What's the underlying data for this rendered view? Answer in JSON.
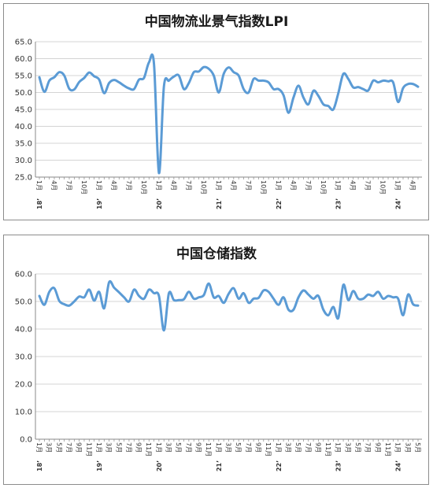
{
  "chart_data": [
    {
      "type": "line",
      "title": "中国物流业景气指数LPI",
      "ylim": [
        25.0,
        65.0
      ],
      "yticks": [
        "25.0",
        "30.0",
        "35.0",
        "40.0",
        "45.0",
        "50.0",
        "55.0",
        "60.0",
        "65.0"
      ],
      "grid": true,
      "color": "#5b9bd5",
      "x": [
        "18’1月",
        "2",
        "3",
        "4月",
        "5",
        "6",
        "7月",
        "8",
        "9",
        "10月",
        "11",
        "12",
        "19’1月",
        "2",
        "3",
        "4月",
        "5",
        "6",
        "7月",
        "8",
        "9",
        "10月",
        "11",
        "12",
        "20’1月",
        "2",
        "3",
        "4月",
        "5",
        "6",
        "7月",
        "8",
        "9",
        "10月",
        "11",
        "12",
        "21’1月",
        "2",
        "3",
        "4月",
        "5",
        "6",
        "7月",
        "8",
        "9",
        "10月",
        "11",
        "12",
        "22’1月",
        "2",
        "3",
        "4月",
        "5",
        "6",
        "7月",
        "8",
        "9",
        "10月",
        "11",
        "12",
        "23’1月",
        "2",
        "3",
        "4月",
        "5",
        "6",
        "7月",
        "8",
        "9",
        "10月",
        "11",
        "12",
        "24’1月",
        "2",
        "3",
        "4月",
        "5"
      ],
      "xtick_labels": [
        {
          "i": 0,
          "label": "1月",
          "year": "18’"
        },
        {
          "i": 3,
          "label": "4月"
        },
        {
          "i": 6,
          "label": "7月"
        },
        {
          "i": 9,
          "label": "10月"
        },
        {
          "i": 12,
          "label": "1月",
          "year": "19’"
        },
        {
          "i": 15,
          "label": "4月"
        },
        {
          "i": 18,
          "label": "7月"
        },
        {
          "i": 21,
          "label": "10月"
        },
        {
          "i": 24,
          "label": "1月",
          "year": "20’"
        },
        {
          "i": 27,
          "label": "4月"
        },
        {
          "i": 30,
          "label": "7月"
        },
        {
          "i": 33,
          "label": "10月"
        },
        {
          "i": 36,
          "label": "1月",
          "year": "21’"
        },
        {
          "i": 39,
          "label": "4月"
        },
        {
          "i": 42,
          "label": "7月"
        },
        {
          "i": 45,
          "label": "10月"
        },
        {
          "i": 48,
          "label": "1月",
          "year": "22’"
        },
        {
          "i": 51,
          "label": "4月"
        },
        {
          "i": 54,
          "label": "7月"
        },
        {
          "i": 57,
          "label": "10月"
        },
        {
          "i": 60,
          "label": "1月",
          "year": "23’"
        },
        {
          "i": 63,
          "label": "4月"
        },
        {
          "i": 66,
          "label": "7月"
        },
        {
          "i": 69,
          "label": "10月"
        },
        {
          "i": 72,
          "label": "1月",
          "year": "24’"
        },
        {
          "i": 75,
          "label": "4月"
        }
      ],
      "values": [
        54.5,
        50.2,
        53.5,
        54.5,
        56.0,
        55.0,
        51.1,
        50.9,
        53.1,
        54.3,
        55.9,
        54.8,
        53.8,
        49.8,
        52.8,
        53.7,
        53.0,
        52.0,
        51.2,
        51.0,
        53.8,
        54.3,
        58.9,
        58.5,
        26.2,
        51.8,
        53.5,
        54.7,
        55.0,
        51.0,
        52.8,
        56.0,
        56.2,
        57.5,
        57.0,
        55.0,
        50.0,
        55.5,
        57.4,
        56.0,
        55.0,
        51.0,
        50.0,
        54.0,
        53.5,
        53.5,
        53.0,
        51.0,
        51.0,
        49.2,
        44.0,
        48.5,
        52.0,
        48.5,
        46.5,
        50.5,
        49.0,
        46.5,
        46.0,
        45.0,
        49.8,
        55.5,
        54.0,
        51.5,
        51.6,
        51.0,
        50.6,
        53.5,
        53.0,
        53.5,
        53.3,
        53.0,
        47.2,
        51.3,
        52.5,
        52.5,
        51.7
      ]
    },
    {
      "type": "line",
      "title": "中国仓储指数",
      "ylim": [
        0.0,
        60.0
      ],
      "yticks": [
        "0.0",
        "10.0",
        "20.0",
        "30.0",
        "40.0",
        "50.0",
        "60.0"
      ],
      "grid": true,
      "color": "#5b9bd5",
      "x": [
        "18’1月",
        "2月",
        "3月",
        "4月",
        "5月",
        "6月",
        "7月",
        "8月",
        "9月",
        "10月",
        "11月",
        "12月",
        "19’1月",
        "2月",
        "3月",
        "4月",
        "5月",
        "6月",
        "7月",
        "8月",
        "9月",
        "10月",
        "11月",
        "12月",
        "20’1月",
        "2月",
        "3月",
        "4月",
        "5月",
        "6月",
        "7月",
        "8月",
        "9月",
        "10月",
        "11月",
        "12月",
        "21’1月",
        "2月",
        "3月",
        "4月",
        "5月",
        "6月",
        "7月",
        "8月",
        "9月",
        "10月",
        "11月",
        "12月",
        "22’1月",
        "2月",
        "3月",
        "4月",
        "5月",
        "6月",
        "7月",
        "8月",
        "9月",
        "10月",
        "11月",
        "12月",
        "23’1月",
        "2月",
        "3月",
        "4月",
        "5月",
        "6月",
        "7月",
        "8月",
        "9月",
        "10月",
        "11月",
        "12月",
        "24’1月",
        "2月",
        "3月",
        "4月",
        "5月"
      ],
      "xtick_labels": [
        {
          "i": 0,
          "label": "1月",
          "year": "18’"
        },
        {
          "i": 2,
          "label": "3月"
        },
        {
          "i": 4,
          "label": "5月"
        },
        {
          "i": 6,
          "label": "7月"
        },
        {
          "i": 8,
          "label": "9月"
        },
        {
          "i": 10,
          "label": "11月"
        },
        {
          "i": 12,
          "label": "1月",
          "year": "19’"
        },
        {
          "i": 14,
          "label": "3月"
        },
        {
          "i": 16,
          "label": "5月"
        },
        {
          "i": 18,
          "label": "7月"
        },
        {
          "i": 20,
          "label": "9月"
        },
        {
          "i": 22,
          "label": "11月"
        },
        {
          "i": 24,
          "label": "1月",
          "year": "20’"
        },
        {
          "i": 26,
          "label": "3月"
        },
        {
          "i": 28,
          "label": "5月"
        },
        {
          "i": 30,
          "label": "7月"
        },
        {
          "i": 32,
          "label": "9月"
        },
        {
          "i": 34,
          "label": "11月"
        },
        {
          "i": 36,
          "label": "1月",
          "year": "21’"
        },
        {
          "i": 38,
          "label": "3月"
        },
        {
          "i": 40,
          "label": "5月"
        },
        {
          "i": 42,
          "label": "7月"
        },
        {
          "i": 44,
          "label": "9月"
        },
        {
          "i": 46,
          "label": "11月"
        },
        {
          "i": 48,
          "label": "1月",
          "year": "22’"
        },
        {
          "i": 50,
          "label": "3月"
        },
        {
          "i": 52,
          "label": "5月"
        },
        {
          "i": 54,
          "label": "7月"
        },
        {
          "i": 56,
          "label": "9月"
        },
        {
          "i": 58,
          "label": "11月"
        },
        {
          "i": 60,
          "label": "1月",
          "year": "23’"
        },
        {
          "i": 62,
          "label": "3月"
        },
        {
          "i": 64,
          "label": "5月"
        },
        {
          "i": 66,
          "label": "7月"
        },
        {
          "i": 68,
          "label": "9月"
        },
        {
          "i": 70,
          "label": "11月"
        },
        {
          "i": 72,
          "label": "1月",
          "year": "24’"
        },
        {
          "i": 74,
          "label": "3月"
        },
        {
          "i": 76,
          "label": "5月"
        }
      ],
      "values": [
        52.0,
        48.8,
        53.5,
        54.8,
        50.2,
        49.0,
        48.5,
        50.0,
        51.8,
        51.5,
        54.3,
        50.3,
        53.5,
        47.5,
        57.0,
        55.0,
        53.3,
        51.5,
        50.0,
        54.3,
        52.0,
        51.0,
        54.3,
        53.0,
        52.0,
        39.5,
        53.0,
        50.5,
        50.5,
        50.8,
        53.5,
        51.0,
        51.5,
        52.3,
        56.5,
        51.5,
        52.0,
        49.5,
        52.8,
        54.8,
        51.0,
        53.0,
        49.5,
        51.0,
        51.3,
        54.0,
        53.5,
        51.0,
        48.8,
        51.5,
        47.0,
        47.0,
        51.5,
        54.0,
        52.5,
        51.0,
        52.0,
        47.0,
        45.0,
        48.0,
        44.0,
        56.0,
        50.5,
        53.8,
        51.0,
        51.0,
        52.5,
        52.0,
        53.5,
        51.0,
        52.0,
        51.5,
        51.0,
        45.0,
        52.5,
        49.0,
        48.5
      ]
    }
  ]
}
